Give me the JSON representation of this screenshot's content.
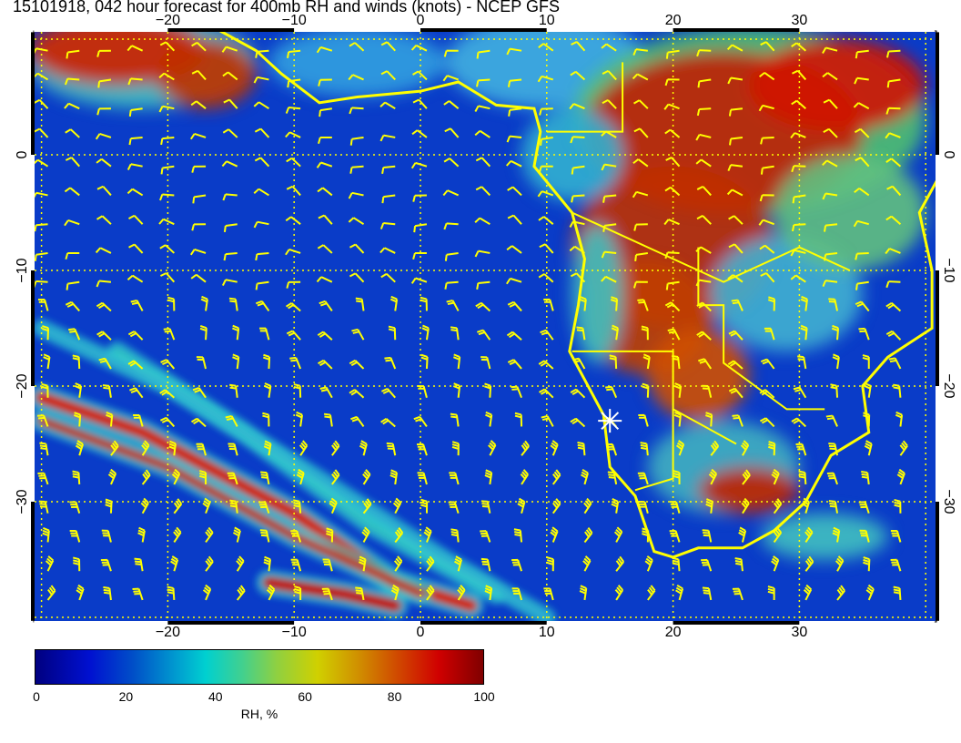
{
  "title": "15101918, 042 hour forecast for 400mb RH and winds (knots) - NCEP GFS",
  "axes": {
    "lon_ticks": [
      "−20",
      "−10",
      "0",
      "10",
      "20",
      "30"
    ],
    "lat_ticks": [
      "0",
      "−10",
      "−20",
      "−30"
    ],
    "lon_range": [
      -30.6,
      40.7
    ],
    "lat_range": [
      -40.3,
      10.6
    ]
  },
  "colorbar": {
    "label": "RH, %",
    "ticks": [
      "0",
      "20",
      "40",
      "60",
      "80",
      "100"
    ],
    "range": [
      0,
      100
    ],
    "colormap": "jet"
  },
  "colors": {
    "coastline": "#ffff00",
    "wind_barbs": "#ffff00",
    "grid": "#ffff00",
    "marker": "#ffffff"
  },
  "marker": {
    "icon": "star-marker-icon",
    "lon": 15,
    "lat": -23
  }
}
